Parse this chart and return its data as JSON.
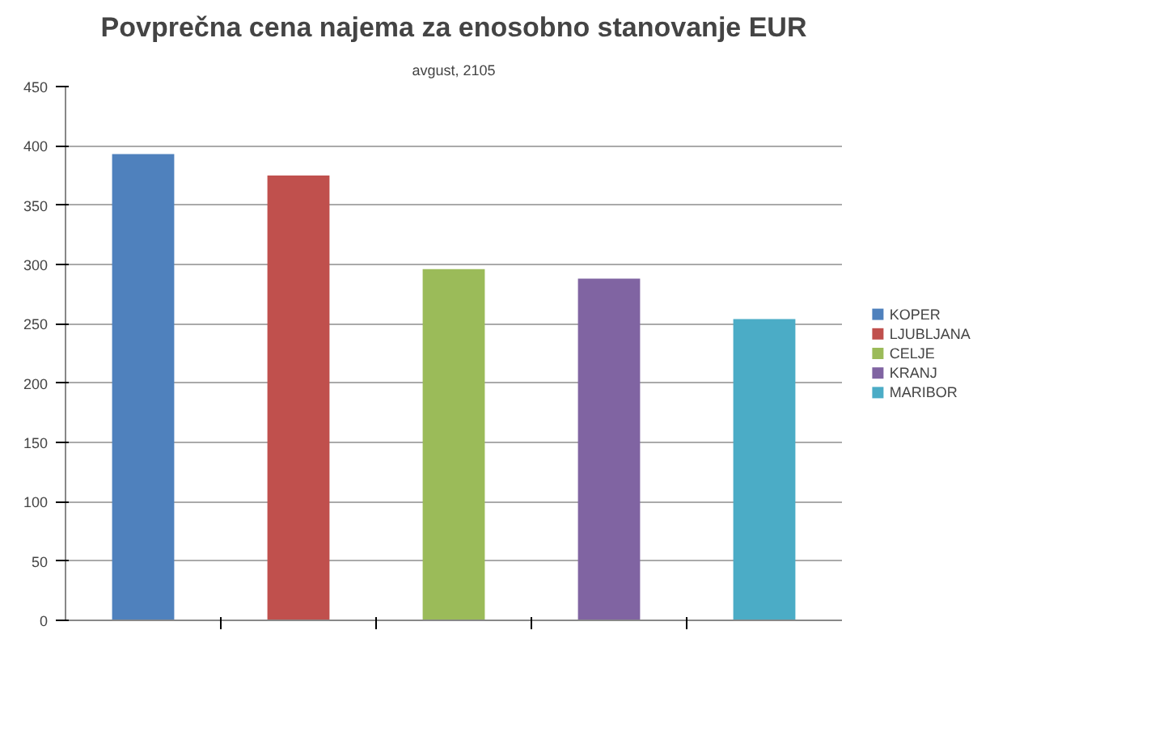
{
  "chart_data": {
    "type": "bar",
    "title": "Povprečna cena najema za enosobno stanovanje EUR",
    "subtitle": "avgust, 2105",
    "categories": [
      null,
      null,
      null,
      null,
      null
    ],
    "series": [
      {
        "name": "KOPER",
        "color": "#4f81bd",
        "values": [
          393,
          null,
          null,
          null,
          null
        ]
      },
      {
        "name": "LJUBLJANA",
        "color": "#c0504d",
        "values": [
          null,
          375,
          null,
          null,
          null
        ]
      },
      {
        "name": "CELJE",
        "color": "#9bbb59",
        "values": [
          null,
          null,
          296,
          null,
          null
        ]
      },
      {
        "name": "KRANJ",
        "color": "#8064a2",
        "values": [
          null,
          null,
          null,
          288,
          null
        ]
      },
      {
        "name": "MARIBOR",
        "color": "#4bacc6",
        "values": [
          null,
          null,
          null,
          null,
          254
        ]
      }
    ],
    "ylim": [
      0,
      450
    ],
    "yticks": [
      0,
      50,
      100,
      150,
      200,
      250,
      300,
      350,
      400,
      450
    ],
    "grid": "y",
    "legend": "right",
    "tick_labels": "y"
  }
}
